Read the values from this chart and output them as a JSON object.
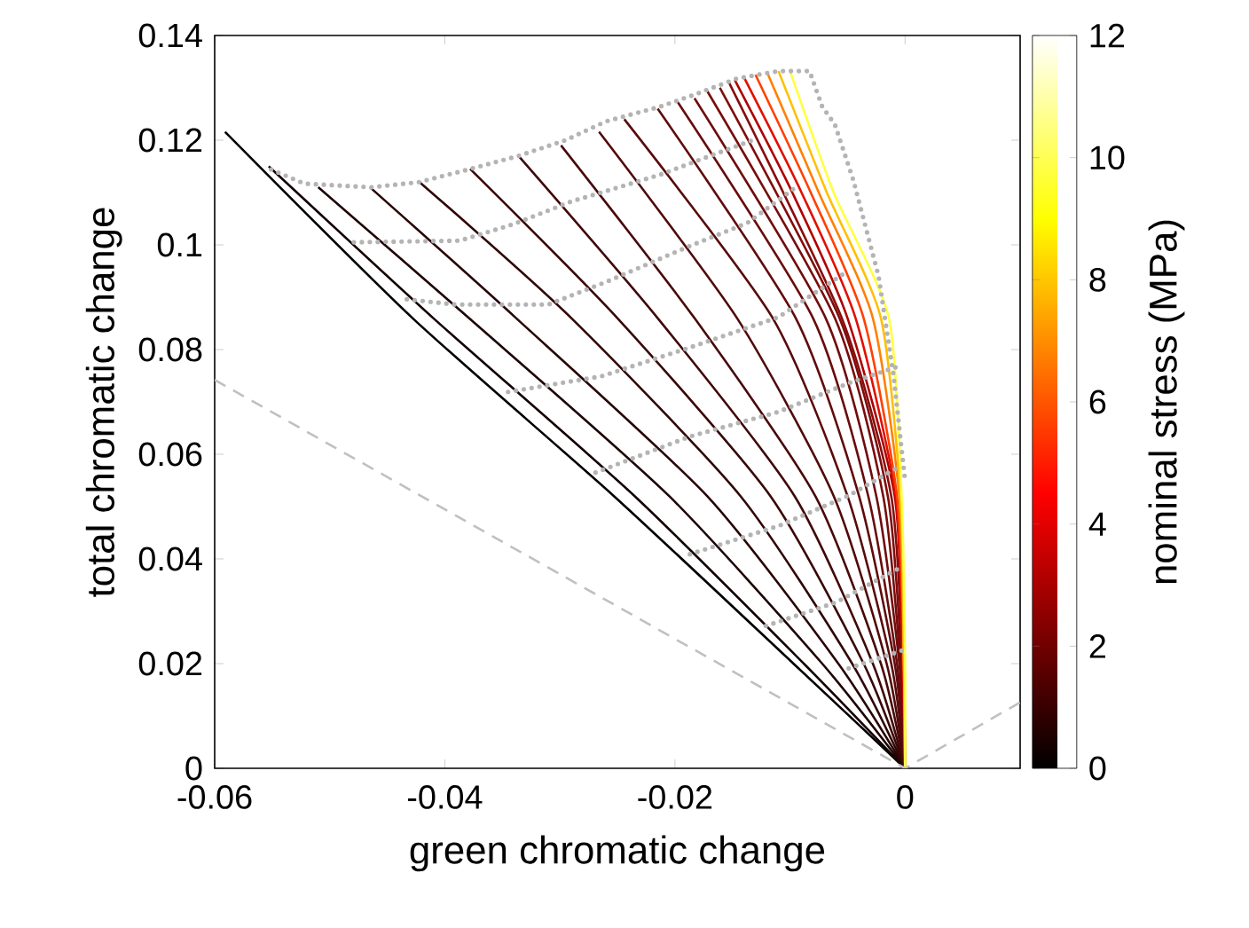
{
  "chart_data": {
    "type": "line",
    "xlabel": "green chromatic change",
    "ylabel": "total chromatic change",
    "clabel": "nominal stress (MPa)",
    "clim": [
      0,
      12
    ],
    "cticks": [
      0,
      2,
      4,
      6,
      8,
      10,
      12
    ],
    "xlim": [
      -0.06,
      0.01
    ],
    "ylim": [
      0,
      0.14
    ],
    "xticks": [
      -0.06,
      -0.04,
      -0.02,
      0
    ],
    "yticks": [
      0,
      0.02,
      0.04,
      0.06,
      0.08,
      0.1,
      0.12,
      0.14
    ],
    "grid": false,
    "marker": "none",
    "line_style": "solid",
    "series": [
      {
        "color": "#000000",
        "x": [
          0,
          -0.0097,
          -0.0253,
          -0.0428,
          -0.0591
        ],
        "values": [
          0,
          0.02,
          0.052,
          0.086,
          0.1216
        ]
      },
      {
        "color": "#140000",
        "x": [
          0,
          -0.0088,
          -0.0235,
          -0.041,
          -0.0553
        ],
        "values": [
          0,
          0.02,
          0.052,
          0.086,
          0.115
        ]
      },
      {
        "color": "#1e0404",
        "x": [
          0,
          -0.0072,
          -0.0205,
          -0.0379,
          -0.051
        ],
        "values": [
          0,
          0.02,
          0.052,
          0.086,
          0.111
        ]
      },
      {
        "color": "#280505",
        "x": [
          0,
          -0.0058,
          -0.0172,
          -0.0338,
          -0.0465
        ],
        "values": [
          0,
          0.02,
          0.052,
          0.086,
          0.111
        ]
      },
      {
        "color": "#300606",
        "x": [
          0,
          -0.0046,
          -0.0143,
          -0.029,
          -0.0422
        ],
        "values": [
          0,
          0.02,
          0.052,
          0.086,
          0.112
        ]
      },
      {
        "color": "#380707",
        "x": [
          0,
          -0.0036,
          -0.0117,
          -0.025,
          -0.0378
        ],
        "values": [
          0,
          0.02,
          0.052,
          0.086,
          0.1145
        ]
      },
      {
        "color": "#400808",
        "x": [
          0,
          -0.0028,
          -0.0096,
          -0.0215,
          -0.0336
        ],
        "values": [
          0,
          0.02,
          0.052,
          0.086,
          0.117
        ]
      },
      {
        "color": "#480909",
        "x": [
          0,
          -0.0021,
          -0.0078,
          -0.0183,
          -0.0299
        ],
        "values": [
          0,
          0.02,
          0.052,
          0.086,
          0.119
        ]
      },
      {
        "color": "#500a0a",
        "x": [
          0,
          -0.0016,
          -0.0062,
          -0.0146,
          -0.0266
        ],
        "values": [
          0,
          0.02,
          0.052,
          0.086,
          0.1216
        ]
      },
      {
        "color": "#580a0a",
        "x": [
          0,
          -0.0012,
          -0.005,
          -0.0115,
          -0.0244
        ],
        "values": [
          0,
          0.02,
          0.052,
          0.086,
          0.124
        ]
      },
      {
        "color": "#600b0b",
        "x": [
          0,
          -0.0009,
          -0.004,
          -0.0095,
          -0.0215
        ],
        "values": [
          0,
          0.02,
          0.052,
          0.086,
          0.126
        ]
      },
      {
        "color": "#680b0b",
        "x": [
          0,
          -0.0007,
          -0.0032,
          -0.008,
          -0.0198
        ],
        "values": [
          0,
          0.02,
          0.052,
          0.086,
          0.1274
        ]
      },
      {
        "color": "#700c0c",
        "x": [
          0,
          -0.0005,
          -0.0025,
          -0.0069,
          -0.0183
        ],
        "values": [
          0,
          0.02,
          0.052,
          0.086,
          0.128
        ]
      },
      {
        "color": "#780c0c",
        "x": [
          0,
          -0.0004,
          -0.0019,
          -0.0061,
          -0.0172
        ],
        "values": [
          0,
          0.02,
          0.052,
          0.086,
          0.1294
        ]
      },
      {
        "color": "#800c0c",
        "x": [
          0,
          -0.0003,
          -0.0015,
          -0.0057,
          -0.0161
        ],
        "values": [
          0,
          0.02,
          0.052,
          0.086,
          0.13
        ]
      },
      {
        "color": "#880c0c",
        "x": [
          0,
          -0.0002,
          -0.0012,
          -0.0055,
          -0.0153
        ],
        "values": [
          0,
          0.02,
          0.052,
          0.086,
          0.131
        ]
      },
      {
        "color": "#b00000",
        "x": [
          0,
          -0.0002,
          -0.0009,
          -0.005,
          -0.0098,
          -0.0148
        ],
        "values": [
          0,
          0.02,
          0.052,
          0.086,
          0.11,
          0.1315
        ]
      },
      {
        "color": "#e01000",
        "x": [
          0,
          -0.0002,
          -0.0008,
          -0.0043,
          -0.009,
          -0.014
        ],
        "values": [
          0,
          0.02,
          0.052,
          0.086,
          0.11,
          0.132
        ]
      },
      {
        "color": "#ff4000",
        "x": [
          0,
          -0.0001,
          -0.0007,
          -0.0036,
          -0.0082,
          -0.013
        ],
        "values": [
          0,
          0.02,
          0.052,
          0.086,
          0.11,
          0.1325
        ]
      },
      {
        "color": "#ff8000",
        "x": [
          0,
          -0.0001,
          -0.0005,
          -0.0028,
          -0.0075,
          -0.012
        ],
        "values": [
          0,
          0.02,
          0.052,
          0.086,
          0.11,
          0.133
        ]
      },
      {
        "color": "#ffc000",
        "x": [
          0,
          -0.0001,
          -0.0004,
          -0.0021,
          -0.0068,
          -0.011
        ],
        "values": [
          0,
          0.02,
          0.052,
          0.086,
          0.11,
          0.1332
        ]
      },
      {
        "color": "#ffff40",
        "x": [
          0,
          0,
          -0.0003,
          -0.0014,
          -0.0062,
          -0.01
        ],
        "values": [
          0,
          0.02,
          0.052,
          0.086,
          0.11,
          0.1332
        ]
      },
      {
        "color": "#c0c0c0",
        "line_style": "dashed",
        "x": [
          -0.06,
          0,
          0.01
        ],
        "values": [
          0.0742,
          0,
          0.0126
        ]
      },
      {
        "color": "#b4b4b4",
        "line_style": "dotted",
        "x": [
          -0.0551,
          -0.0522,
          -0.0464,
          -0.0422,
          -0.0378,
          -0.0336,
          -0.0295,
          -0.026,
          -0.0213,
          -0.0183,
          -0.0146,
          -0.011,
          -0.0083,
          -0.0072,
          -0.0061,
          -0.0045,
          -0.0023,
          -0.001,
          0
        ],
        "values": [
          0.1144,
          0.1117,
          0.111,
          0.112,
          0.1145,
          0.117,
          0.12,
          0.1236,
          0.1264,
          0.1287,
          0.1318,
          0.1332,
          0.1332,
          0.1264,
          0.123,
          0.1124,
          0.094,
          0.075,
          0.055
        ]
      },
      {
        "color": "#b4b4b4",
        "line_style": "dotted",
        "x": [
          -0.0479,
          -0.0387,
          -0.0341,
          -0.029,
          -0.0249,
          -0.0213,
          -0.0172,
          -0.013
        ],
        "values": [
          0.1005,
          0.1008,
          0.1039,
          0.1083,
          0.111,
          0.1134,
          0.1168,
          0.1202
        ]
      },
      {
        "color": "#b4b4b4",
        "line_style": "dotted",
        "x": [
          -0.0433,
          -0.0391,
          -0.031,
          -0.0259,
          -0.0187,
          -0.0137,
          -0.0095
        ],
        "values": [
          0.0896,
          0.0886,
          0.0886,
          0.093,
          0.0998,
          0.1042,
          0.111
        ]
      },
      {
        "color": "#b4b4b4",
        "line_style": "dotted",
        "x": [
          -0.0345,
          -0.0264,
          -0.0187,
          -0.011,
          -0.005
        ],
        "values": [
          0.0719,
          0.0749,
          0.0804,
          0.0862,
          0.095
        ]
      },
      {
        "color": "#b4b4b4",
        "line_style": "dotted",
        "x": [
          -0.0269,
          -0.0187,
          -0.011,
          -0.0049,
          -0.0003
        ],
        "values": [
          0.0565,
          0.0634,
          0.0681,
          0.0736,
          0.077
        ]
      },
      {
        "color": "#b4b4b4",
        "line_style": "dotted",
        "x": [
          -0.0187,
          -0.011,
          -0.0049,
          -0.0003
        ],
        "values": [
          0.0409,
          0.0463,
          0.0521,
          0.0579
        ]
      },
      {
        "color": "#b4b4b4",
        "line_style": "dotted",
        "x": [
          -0.0121,
          -0.006,
          -0.0003
        ],
        "values": [
          0.0272,
          0.0317,
          0.0385
        ]
      },
      {
        "color": "#b4b4b4",
        "line_style": "dotted",
        "x": [
          -0.0049,
          -0.0003
        ],
        "values": [
          0.0191,
          0.0225
        ]
      }
    ]
  }
}
